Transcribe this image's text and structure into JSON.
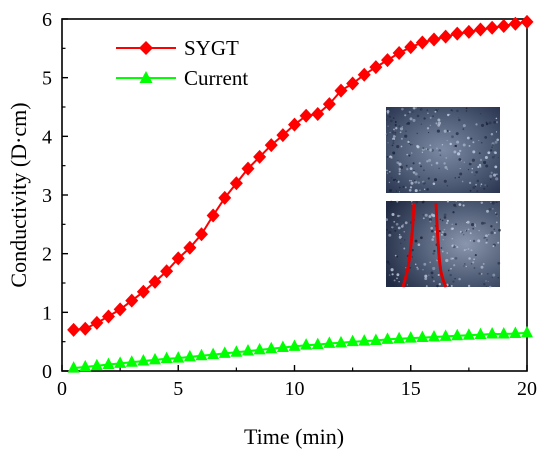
{
  "chart_data": {
    "type": "line",
    "xlabel": "Time (min)",
    "ylabel": "Conductivity (D·cm)",
    "xlim": [
      0,
      20
    ],
    "ylim": [
      0,
      6
    ],
    "x_ticks": [
      0,
      5,
      10,
      15,
      20
    ],
    "x_tick_labels": [
      "0",
      "5",
      "10",
      "15",
      "20"
    ],
    "y_ticks": [
      0,
      1,
      2,
      3,
      4,
      5,
      6
    ],
    "y_tick_labels": [
      "0",
      "1",
      "2",
      "3",
      "4",
      "5",
      "6"
    ],
    "grid": false,
    "legend_placement": "top-left",
    "series": [
      {
        "name": "SYGT",
        "color": "#ff0000",
        "marker": "diamond",
        "x": [
          0.5,
          1.0,
          1.5,
          2.0,
          2.5,
          3.0,
          3.5,
          4.0,
          4.5,
          5.0,
          5.5,
          6.0,
          6.5,
          7.0,
          7.5,
          8.0,
          8.5,
          9.0,
          9.5,
          10.0,
          10.5,
          11.0,
          11.5,
          12.0,
          12.5,
          13.0,
          13.5,
          14.0,
          14.5,
          15.0,
          15.5,
          16.0,
          16.5,
          17.0,
          17.5,
          18.0,
          18.5,
          19.0,
          19.5,
          20.0
        ],
        "values": [
          0.7,
          0.72,
          0.82,
          0.93,
          1.05,
          1.2,
          1.35,
          1.52,
          1.7,
          1.92,
          2.1,
          2.33,
          2.65,
          2.95,
          3.2,
          3.45,
          3.65,
          3.85,
          4.02,
          4.2,
          4.35,
          4.38,
          4.55,
          4.78,
          4.9,
          5.05,
          5.18,
          5.3,
          5.42,
          5.52,
          5.6,
          5.65,
          5.7,
          5.75,
          5.78,
          5.82,
          5.85,
          5.88,
          5.92,
          5.95
        ]
      },
      {
        "name": "Current",
        "color": "#00ff00",
        "marker": "triangle",
        "x": [
          0.5,
          1.0,
          1.5,
          2.0,
          2.5,
          3.0,
          3.5,
          4.0,
          4.5,
          5.0,
          5.5,
          6.0,
          6.5,
          7.0,
          7.5,
          8.0,
          8.5,
          9.0,
          9.5,
          10.0,
          10.5,
          11.0,
          11.5,
          12.0,
          12.5,
          13.0,
          13.5,
          14.0,
          14.5,
          15.0,
          15.5,
          16.0,
          16.5,
          17.0,
          17.5,
          18.0,
          18.5,
          19.0,
          19.5,
          20.0
        ],
        "values": [
          0.05,
          0.07,
          0.09,
          0.11,
          0.13,
          0.15,
          0.17,
          0.19,
          0.21,
          0.22,
          0.24,
          0.26,
          0.28,
          0.3,
          0.32,
          0.34,
          0.36,
          0.38,
          0.4,
          0.42,
          0.44,
          0.45,
          0.47,
          0.48,
          0.5,
          0.51,
          0.52,
          0.54,
          0.55,
          0.56,
          0.57,
          0.58,
          0.59,
          0.6,
          0.61,
          0.62,
          0.63,
          0.63,
          0.64,
          0.65
        ]
      }
    ]
  },
  "inset": {
    "top_panel": "micrograph-top",
    "bottom_panel": "micrograph-bottom",
    "line_color": "#e00000"
  }
}
